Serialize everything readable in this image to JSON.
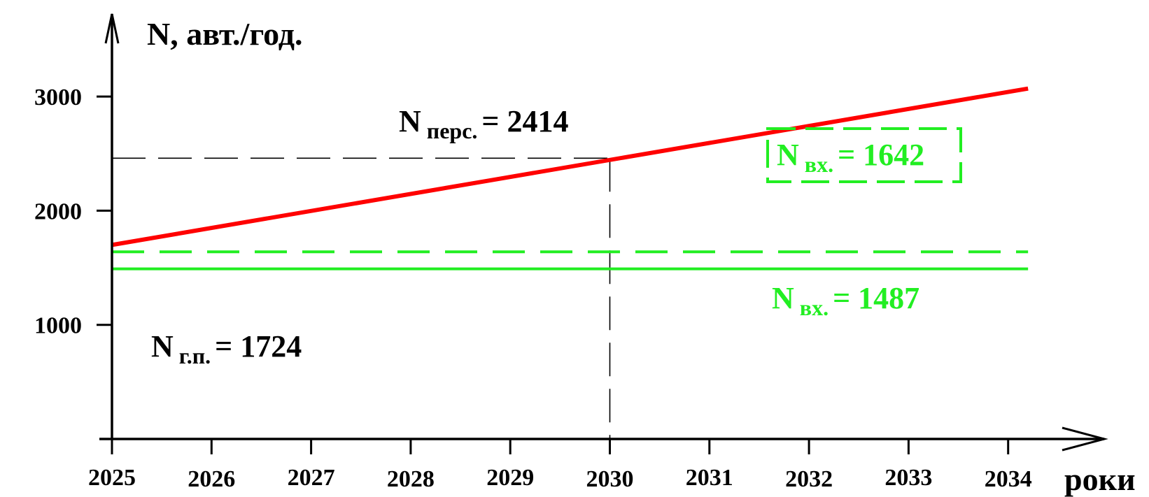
{
  "chart_data": {
    "type": "line",
    "ylabel": "N, авт./год.",
    "xlabel": "роки",
    "x_ticks": [
      "2025",
      "2026",
      "2027",
      "2028",
      "2029",
      "2030",
      "2031",
      "2032",
      "2033",
      "2034"
    ],
    "y_ticks": [
      "1000",
      "2000",
      "3000"
    ],
    "xlim": [
      2025,
      2034
    ],
    "ylim": [
      0,
      3000
    ],
    "series": [
      {
        "color": "#ff0000",
        "style": "solid",
        "x": [
          2025,
          2034.2
        ],
        "y": [
          1700,
          3070
        ]
      },
      {
        "color": "#22ee22",
        "style": "dashed",
        "x": [
          2025,
          2034.2
        ],
        "y": [
          1640,
          1640
        ]
      },
      {
        "color": "#22ee22",
        "style": "solid",
        "x": [
          2025,
          2034.2
        ],
        "y": [
          1490,
          1490
        ]
      }
    ],
    "reference": {
      "x": 2030,
      "y": 2460
    },
    "annotations": {
      "n_pers": {
        "main": "N",
        "sub": "перс.",
        "value": "= 2414"
      },
      "n_vx_boxed": {
        "main": "N",
        "sub": "вх.",
        "value": "= 1642"
      },
      "n_vx": {
        "main": "N",
        "sub": "вх.",
        "value": "= 1487"
      },
      "n_gp": {
        "main": "N",
        "sub": "г.п.",
        "value": "= 1724"
      }
    },
    "colors": {
      "axis": "#000000",
      "red_line": "#ff0000",
      "green": "#22ee22",
      "reference": "#000000"
    }
  }
}
